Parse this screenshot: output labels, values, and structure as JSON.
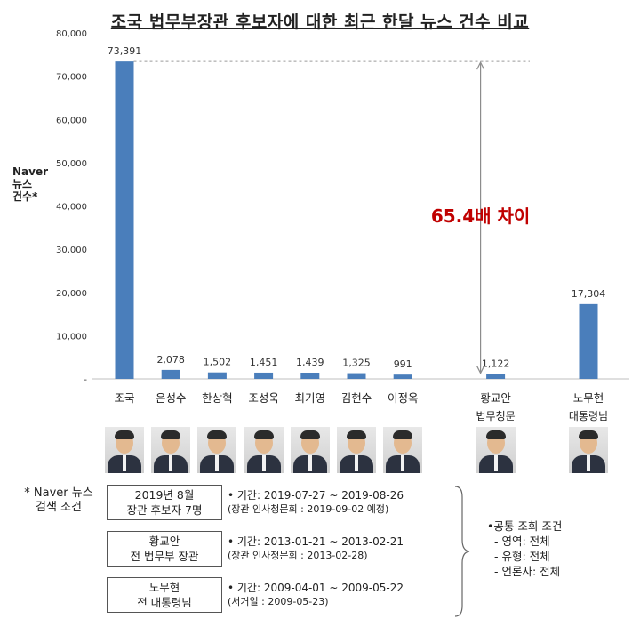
{
  "title": "조국 법무부장관 후보자에 대한 최근 한달 뉴스 건수 비교",
  "ylabel": [
    "Naver",
    "뉴스",
    "건수*"
  ],
  "annotation": "65.4배 차이",
  "chart_data": {
    "type": "bar",
    "title": "조국 법무부장관 후보자에 대한 최근 한달 뉴스 건수 비교",
    "ylabel": "Naver 뉴스 건수*",
    "xlabel": "",
    "ylim": [
      0,
      80000
    ],
    "yticks": [
      "-",
      "10,000",
      "20,000",
      "30,000",
      "40,000",
      "50,000",
      "60,000",
      "70,000",
      "80,000"
    ],
    "categories": [
      {
        "name": "조국",
        "sub": "",
        "value": 73391,
        "label": "73,391",
        "slot": 0
      },
      {
        "name": "은성수",
        "sub": "",
        "value": 2078,
        "label": "2,078",
        "slot": 1
      },
      {
        "name": "한상혁",
        "sub": "",
        "value": 1502,
        "label": "1,502",
        "slot": 2
      },
      {
        "name": "조성욱",
        "sub": "",
        "value": 1451,
        "label": "1,451",
        "slot": 3
      },
      {
        "name": "최기영",
        "sub": "",
        "value": 1439,
        "label": "1,439",
        "slot": 4
      },
      {
        "name": "김현수",
        "sub": "",
        "value": 1325,
        "label": "1,325",
        "slot": 5
      },
      {
        "name": "이정옥",
        "sub": "",
        "value": 991,
        "label": "991",
        "slot": 6
      },
      {
        "name": "황교안",
        "sub": "법무청문",
        "value": 1122,
        "label": "1,122",
        "slot": 8
      },
      {
        "name": "노무현",
        "sub": "대통령님",
        "value": 17304,
        "label": "17,304",
        "slot": 10
      }
    ],
    "bar_color": "#4a7ebb",
    "annotation": "65.4배 차이",
    "annotation_color": "#c00000",
    "grid": false,
    "legend": "none"
  },
  "conditions": {
    "label": [
      "* Naver 뉴스",
      "검색 조건"
    ],
    "rows": [
      {
        "box": [
          "2019년 8월",
          "장관 후보자 7명"
        ],
        "period": "• 기간: 2019-07-27 ~ 2019-08-26",
        "note": "(장관 인사청문회 : 2019-09-02 예정)"
      },
      {
        "box": [
          "황교안",
          "전 법무부 장관"
        ],
        "period": "• 기간: 2013-01-21 ~ 2013-02-21",
        "note": "(장관 인사청문회 : 2013-02-28)"
      },
      {
        "box": [
          "노무현",
          "전 대통령님"
        ],
        "period": "• 기간: 2009-04-01 ~ 2009-05-22",
        "note": "(서거일 : 2009-05-23)"
      }
    ],
    "common": [
      "•공통 조회 조건",
      "- 영역: 전체",
      "- 유형: 전체",
      "- 언론사: 전체"
    ]
  }
}
